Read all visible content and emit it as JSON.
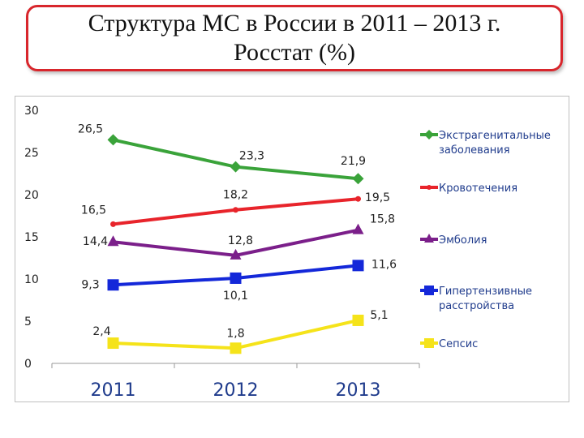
{
  "title": {
    "line1": "Структура МС в России в 2011 – 2013 г.",
    "line2": "Росстат (%)"
  },
  "chart_data": {
    "type": "line",
    "x": [
      "2011",
      "2012",
      "2013"
    ],
    "ylim": [
      0,
      30
    ],
    "yticks": [
      "0",
      "5",
      "10",
      "15",
      "20",
      "25",
      "30"
    ],
    "grid": false,
    "legend_position": "right",
    "series": [
      {
        "name": "Экстрагенитальные заболевания",
        "values": [
          26.5,
          23.3,
          21.9
        ],
        "labels": [
          "26,5",
          "23,3",
          "21,9"
        ],
        "color": "#3aa33a",
        "marker": "diamond"
      },
      {
        "name": "Кровотечения",
        "values": [
          16.5,
          18.2,
          19.5
        ],
        "labels": [
          "16,5",
          "18,2",
          "19,5"
        ],
        "color": "#e8242b",
        "marker": "dot"
      },
      {
        "name": "Эмболия",
        "values": [
          14.4,
          12.8,
          15.8
        ],
        "labels": [
          "14,4",
          "12,8",
          "15,8"
        ],
        "color": "#7b1f8a",
        "marker": "triangle"
      },
      {
        "name": "Гипертензивные расстройства",
        "values": [
          9.3,
          10.1,
          11.6
        ],
        "labels": [
          "9,3",
          "10,1",
          "11,6"
        ],
        "color": "#1428d9",
        "marker": "square"
      },
      {
        "name": "Сепсис",
        "values": [
          2.4,
          1.8,
          5.1
        ],
        "labels": [
          "2,4",
          "1,8",
          "5,1"
        ],
        "color": "#f5e31a",
        "marker": "square"
      }
    ]
  }
}
